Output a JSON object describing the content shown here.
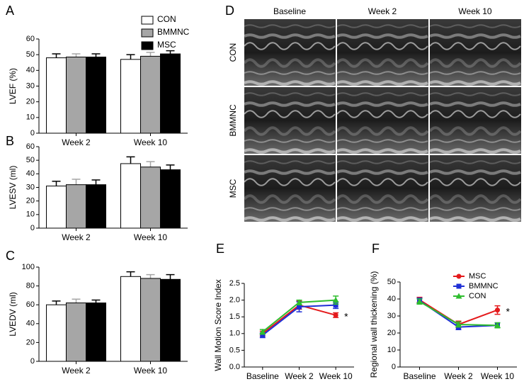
{
  "chart_data": [
    {
      "type": "bar",
      "panel": "A",
      "y_label": "LVEF (%)",
      "categories": [
        "Week 2",
        "Week 10"
      ],
      "series": [
        {
          "name": "CON",
          "color": "#ffffff",
          "values": [
            48,
            47
          ],
          "errors": [
            2.5,
            3
          ]
        },
        {
          "name": "BMMNC",
          "color": "#a6a6a6",
          "values": [
            48.5,
            49
          ],
          "errors": [
            2,
            2.5
          ]
        },
        {
          "name": "MSC",
          "color": "#000000",
          "values": [
            48.5,
            50.5
          ],
          "errors": [
            2,
            2
          ]
        }
      ],
      "ylim": [
        0,
        60
      ],
      "yticks": [
        0,
        10,
        20,
        30,
        40,
        50,
        60
      ],
      "legend": "top"
    },
    {
      "type": "bar",
      "panel": "B",
      "y_label": "LVESV (ml)",
      "categories": [
        "Week 2",
        "Week 10"
      ],
      "series": [
        {
          "color": "#ffffff",
          "values": [
            31,
            47.5
          ],
          "errors": [
            3.5,
            5
          ]
        },
        {
          "color": "#a6a6a6",
          "values": [
            32,
            45
          ],
          "errors": [
            4,
            4
          ]
        },
        {
          "color": "#000000",
          "values": [
            32,
            43
          ],
          "errors": [
            3.5,
            3.5
          ]
        }
      ],
      "ylim": [
        0,
        60
      ],
      "yticks": [
        0,
        10,
        20,
        30,
        40,
        50,
        60
      ]
    },
    {
      "type": "bar",
      "panel": "C",
      "y_label": "LVEDV (ml)",
      "categories": [
        "Week 2",
        "Week 10"
      ],
      "series": [
        {
          "color": "#ffffff",
          "values": [
            60,
            90
          ],
          "errors": [
            4,
            5
          ]
        },
        {
          "color": "#a6a6a6",
          "values": [
            62,
            88
          ],
          "errors": [
            4,
            4
          ]
        },
        {
          "color": "#000000",
          "values": [
            62,
            87
          ],
          "errors": [
            3,
            5
          ]
        }
      ],
      "ylim": [
        0,
        100
      ],
      "yticks": [
        0,
        20,
        40,
        60,
        80,
        100
      ]
    },
    {
      "type": "line",
      "panel": "E",
      "y_label": "Wall Motion Score Index",
      "categories": [
        "Baseline",
        "Week 2",
        "Week 10"
      ],
      "series": [
        {
          "name": "MSC",
          "color": "#e41a1c",
          "marker": "circle",
          "values": [
            1.0,
            1.85,
            1.55
          ],
          "errors": [
            0.07,
            0.12,
            0.07
          ]
        },
        {
          "name": "BMMNC",
          "color": "#1f2fd6",
          "marker": "square",
          "values": [
            0.95,
            1.8,
            1.85
          ],
          "errors": [
            0.07,
            0.15,
            0.1
          ]
        },
        {
          "name": "CON",
          "color": "#2ebd2e",
          "marker": "triangle",
          "values": [
            1.05,
            1.93,
            2.0
          ],
          "errors": [
            0.07,
            0.07,
            0.12
          ]
        }
      ],
      "ylim": [
        0,
        2.5
      ],
      "yticks": [
        {
          "value": 0,
          "label": "0.0"
        },
        0.5,
        {
          "value": 1,
          "label": "1.0"
        },
        1.5,
        {
          "value": 2,
          "label": "2.0"
        },
        2.5
      ],
      "annotation": "*"
    },
    {
      "type": "line",
      "panel": "F",
      "y_label": "Regional wall thickening (%)",
      "categories": [
        "Baseline",
        "Week 2",
        "Week 10"
      ],
      "series": [
        {
          "name": "MSC",
          "color": "#e41a1c",
          "marker": "circle",
          "values": [
            39.5,
            25,
            33.5
          ],
          "errors": [
            1.5,
            2,
            2.5
          ]
        },
        {
          "name": "BMMNC",
          "color": "#1f2fd6",
          "marker": "square",
          "values": [
            39,
            23.5,
            24.5
          ],
          "errors": [
            1.5,
            1.5,
            1.5
          ]
        },
        {
          "name": "CON",
          "color": "#2ebd2e",
          "marker": "triangle",
          "values": [
            38.5,
            25,
            24.5
          ],
          "errors": [
            1.5,
            1.5,
            1.5
          ]
        }
      ],
      "ylim": [
        0,
        50
      ],
      "yticks": [
        0,
        10,
        20,
        30,
        40,
        50
      ],
      "legend": "upper right",
      "annotation": "*"
    }
  ],
  "panel_d": {
    "label": "D",
    "columns": [
      "Baseline",
      "Week 2",
      "Week 10"
    ],
    "rows": [
      "CON",
      "BMMNC",
      "MSC"
    ]
  }
}
